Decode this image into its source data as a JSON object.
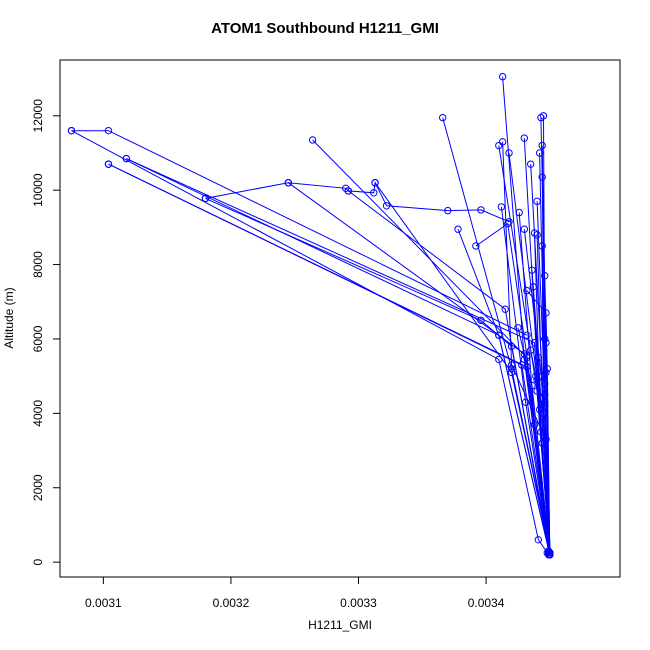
{
  "chart_data": {
    "type": "line",
    "title": "ATOM1 Southbound H1211_GMI",
    "xlabel": "H1211_GMI",
    "ylabel": "Altitude (m)",
    "xlim": [
      0.003066,
      0.003505
    ],
    "ylim": [
      -400,
      13500
    ],
    "x_ticks": [
      0.0031,
      0.0032,
      0.0033,
      0.0034
    ],
    "x_tick_labels": [
      "0.0031",
      "0.0032",
      "0.0033",
      "0.0034"
    ],
    "y_ticks": [
      0,
      2000,
      4000,
      6000,
      8000,
      10000,
      12000
    ],
    "y_tick_labels": [
      "0",
      "2000",
      "4000",
      "6000",
      "8000",
      "10000",
      "12000"
    ],
    "series_color": "#0000ff",
    "marker": "open-circle",
    "grid": false,
    "series": [
      {
        "x": [
          0.003075,
          0.003104,
          0.003432
        ],
        "y": [
          11600,
          11600,
          6100
        ]
      },
      {
        "x": [
          0.003075,
          0.00341,
          0.003441,
          0.003448,
          0.00345
        ],
        "y": [
          11600,
          5450,
          600,
          250,
          200
        ]
      },
      {
        "x": [
          0.003104,
          0.003428,
          0.00345
        ],
        "y": [
          10700,
          5300,
          250
        ]
      },
      {
        "x": [
          0.003104,
          0.003432,
          0.00345
        ],
        "y": [
          10700,
          5250,
          200
        ]
      },
      {
        "x": [
          0.003118,
          0.00341,
          0.00345
        ],
        "y": [
          10850,
          6100,
          200
        ]
      },
      {
        "x": [
          0.003118,
          0.003438,
          0.00345
        ],
        "y": [
          10850,
          5900,
          250
        ]
      },
      {
        "x": [
          0.00318,
          0.003245,
          0.00329,
          0.003292,
          0.003312,
          0.003313,
          0.003322,
          0.00337,
          0.003396,
          0.003418
        ],
        "y": [
          9780,
          10200,
          10050,
          9980,
          9930,
          10200,
          9580,
          9450,
          9470,
          9150
        ]
      },
      {
        "x": [
          0.00318,
          0.003396,
          0.00342,
          0.00345
        ],
        "y": [
          9780,
          6500,
          5800,
          250
        ]
      },
      {
        "x": [
          0.003245,
          0.00343,
          0.003449
        ],
        "y": [
          10200,
          5600,
          250
        ]
      },
      {
        "x": [
          0.003264,
          0.003432,
          0.00345
        ],
        "y": [
          11350,
          5500,
          200
        ]
      },
      {
        "x": [
          0.003313,
          0.00342,
          0.00345
        ],
        "y": [
          10200,
          5100,
          250
        ]
      },
      {
        "x": [
          0.003292,
          0.003415,
          0.003449
        ],
        "y": [
          9980,
          6800,
          300
        ]
      },
      {
        "x": [
          0.003366,
          0.00342,
          0.00345
        ],
        "y": [
          11950,
          5200,
          250
        ]
      },
      {
        "x": [
          0.003378,
          0.00341,
          0.00345
        ],
        "y": [
          8950,
          6100,
          200
        ]
      },
      {
        "x": [
          0.003392,
          0.003417,
          0.003432,
          0.00345
        ],
        "y": [
          8500,
          9100,
          5550,
          250
        ]
      },
      {
        "x": [
          0.003413,
          0.00343,
          0.00345
        ],
        "y": [
          13050,
          5450,
          200
        ]
      },
      {
        "x": [
          0.00341,
          0.00344,
          0.00345
        ],
        "y": [
          11200,
          4600,
          250
        ]
      },
      {
        "x": [
          0.003413,
          0.00342,
          0.003447,
          0.00345
        ],
        "y": [
          11300,
          5300,
          3300,
          200
        ]
      },
      {
        "x": [
          0.003418,
          0.00344,
          0.00345
        ],
        "y": [
          11000,
          4900,
          250
        ]
      },
      {
        "x": [
          0.003412,
          0.003431,
          0.00345
        ],
        "y": [
          9550,
          4300,
          200
        ]
      },
      {
        "x": [
          0.003426,
          0.003438,
          0.00345
        ],
        "y": [
          9400,
          3700,
          250
        ]
      },
      {
        "x": [
          0.00343,
          0.003442,
          0.00345
        ],
        "y": [
          11400,
          4100,
          200
        ]
      },
      {
        "x": [
          0.003435,
          0.003444,
          0.00345
        ],
        "y": [
          10700,
          5000,
          250
        ]
      },
      {
        "x": [
          0.003438,
          0.003443,
          0.00345
        ],
        "y": [
          8850,
          3500,
          200
        ]
      },
      {
        "x": [
          0.00343,
          0.003446,
          0.00345
        ],
        "y": [
          8950,
          4200,
          250
        ]
      },
      {
        "x": [
          0.003437,
          0.003444,
          0.00345
        ],
        "y": [
          7400,
          3200,
          200
        ]
      },
      {
        "x": [
          0.00344,
          0.003446,
          0.00345
        ],
        "y": [
          9700,
          4500,
          250
        ]
      },
      {
        "x": [
          0.003442,
          0.003446,
          0.003449
        ],
        "y": [
          11000,
          4800,
          200
        ]
      },
      {
        "x": [
          0.003443,
          0.003447,
          0.00345
        ],
        "y": [
          11950,
          5900,
          250
        ]
      },
      {
        "x": [
          0.003445,
          0.003446,
          0.00345
        ],
        "y": [
          12000,
          6000,
          200
        ]
      },
      {
        "x": [
          0.003444,
          0.003447,
          0.00345
        ],
        "y": [
          11200,
          5100,
          250
        ]
      },
      {
        "x": [
          0.003444,
          0.003446,
          0.003449
        ],
        "y": [
          10350,
          4300,
          200
        ]
      },
      {
        "x": [
          0.00344,
          0.003445,
          0.00345
        ],
        "y": [
          8800,
          3400,
          250
        ]
      },
      {
        "x": [
          0.003444,
          0.003445,
          0.00345
        ],
        "y": [
          8500,
          4000,
          200
        ]
      },
      {
        "x": [
          0.003436,
          0.003441,
          0.00345
        ],
        "y": [
          7850,
          5500,
          250
        ]
      },
      {
        "x": [
          0.003446,
          0.003448,
          0.00345
        ],
        "y": [
          7700,
          5200,
          200
        ]
      },
      {
        "x": [
          0.003425,
          0.003436,
          0.00345
        ],
        "y": [
          6300,
          4750,
          250
        ]
      },
      {
        "x": [
          0.003432,
          0.003447,
          0.00345
        ],
        "y": [
          7300,
          6700,
          200
        ]
      },
      {
        "x": [
          0.003435,
          0.003439,
          0.00345
        ],
        "y": [
          5700,
          5000,
          250
        ]
      }
    ]
  }
}
